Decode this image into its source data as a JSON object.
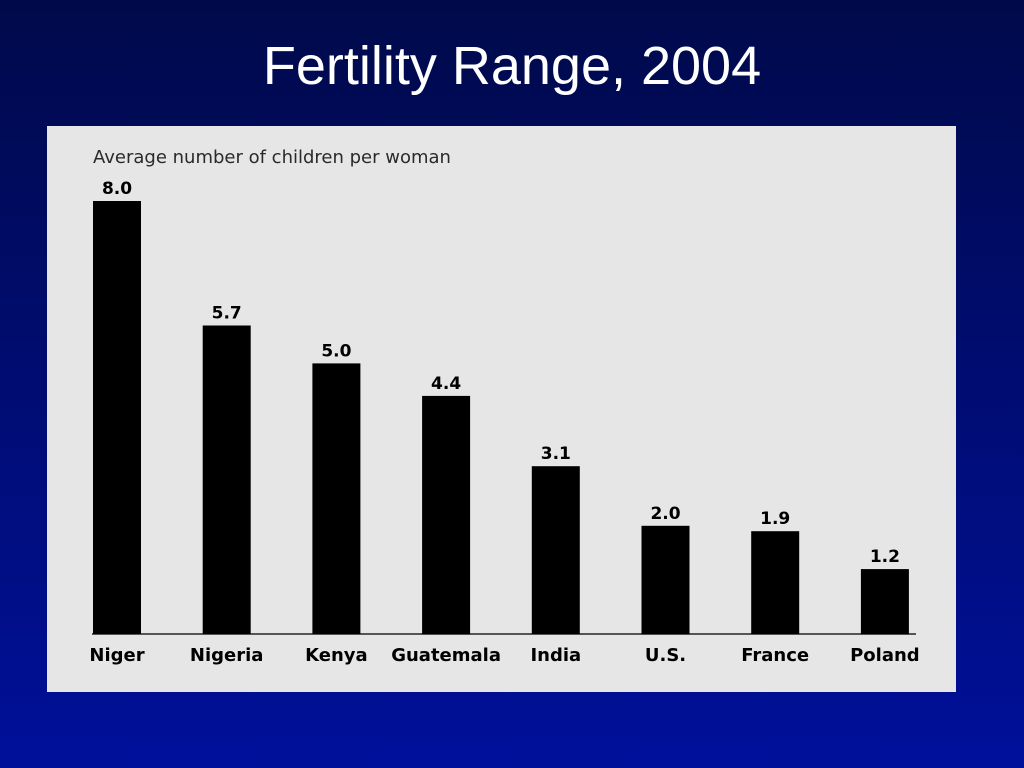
{
  "slide": {
    "title": "Fertility Range, 2004"
  },
  "colors": {
    "background_top": "#000a4a",
    "background_bottom": "#00109a",
    "panel": "#e6e6e6",
    "bars": "#000000"
  },
  "chart_data": {
    "type": "bar",
    "title": "",
    "ylabel": "Average number of children per woman",
    "xlabel": "",
    "categories": [
      "Niger",
      "Nigeria",
      "Kenya",
      "Guatemala",
      "India",
      "U.S.",
      "France",
      "Poland"
    ],
    "values": [
      8.0,
      5.7,
      5.0,
      4.4,
      3.1,
      2.0,
      1.9,
      1.2
    ],
    "value_labels": [
      "8.0",
      "5.7",
      "5.0",
      "4.4",
      "3.1",
      "2.0",
      "1.9",
      "1.2"
    ],
    "ylim": [
      0,
      8.0
    ],
    "grid": false,
    "legend": "none"
  }
}
